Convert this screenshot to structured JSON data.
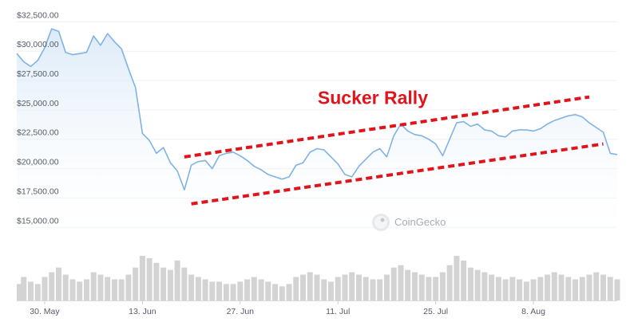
{
  "colors": {
    "line": "#7fb3e6",
    "area_top": "#d4e6f7",
    "volume": "#d3d3d3",
    "channel": "#e0141b",
    "annotation": "#e0141b",
    "grid": "#eef1f5"
  },
  "chart_data": {
    "type": "line",
    "title": "",
    "xlabel": "",
    "ylabel": "",
    "ylim": [
      14000,
      33000
    ],
    "y_ticks": [
      {
        "value": 32500,
        "label": "$32,500.00"
      },
      {
        "value": 30000,
        "label": "$30,000.00"
      },
      {
        "value": 27500,
        "label": "$27,500.00"
      },
      {
        "value": 25000,
        "label": "$25,000.00"
      },
      {
        "value": 22500,
        "label": "$22,500.00"
      },
      {
        "value": 20000,
        "label": "$20,000.00"
      },
      {
        "value": 17500,
        "label": "$17,500.00"
      },
      {
        "value": 15000,
        "label": "$15,000.00"
      }
    ],
    "x_ticks": [
      {
        "date": "2022-05-30",
        "label": "30. May"
      },
      {
        "date": "2022-06-13",
        "label": "13. Jun"
      },
      {
        "date": "2022-06-27",
        "label": "27. Jun"
      },
      {
        "date": "2022-07-11",
        "label": "11. Jul"
      },
      {
        "date": "2022-07-25",
        "label": "25. Jul"
      },
      {
        "date": "2022-08-08",
        "label": "8. Aug"
      }
    ],
    "xlim": [
      "2022-05-26",
      "2022-08-20"
    ],
    "series": [
      {
        "values": [
          [
            "2022-05-26",
            29800
          ],
          [
            "2022-05-27",
            29100
          ],
          [
            "2022-05-28",
            28700
          ],
          [
            "2022-05-29",
            29200
          ],
          [
            "2022-05-30",
            30300
          ],
          [
            "2022-05-31",
            31900
          ],
          [
            "2022-06-01",
            31700
          ],
          [
            "2022-06-02",
            29900
          ],
          [
            "2022-06-03",
            29700
          ],
          [
            "2022-06-04",
            29800
          ],
          [
            "2022-06-05",
            29900
          ],
          [
            "2022-06-06",
            31300
          ],
          [
            "2022-06-07",
            30500
          ],
          [
            "2022-06-08",
            31500
          ],
          [
            "2022-06-09",
            30800
          ],
          [
            "2022-06-10",
            30200
          ],
          [
            "2022-06-11",
            28500
          ],
          [
            "2022-06-12",
            26900
          ],
          [
            "2022-06-13",
            23000
          ],
          [
            "2022-06-14",
            22400
          ],
          [
            "2022-06-15",
            21300
          ],
          [
            "2022-06-16",
            21800
          ],
          [
            "2022-06-17",
            20500
          ],
          [
            "2022-06-18",
            19800
          ],
          [
            "2022-06-19",
            18200
          ],
          [
            "2022-06-20",
            20300
          ],
          [
            "2022-06-21",
            20600
          ],
          [
            "2022-06-22",
            20700
          ],
          [
            "2022-06-23",
            20000
          ],
          [
            "2022-06-24",
            21100
          ],
          [
            "2022-06-25",
            21300
          ],
          [
            "2022-06-26",
            21400
          ],
          [
            "2022-06-27",
            21100
          ],
          [
            "2022-06-28",
            20700
          ],
          [
            "2022-06-29",
            20200
          ],
          [
            "2022-06-30",
            19900
          ],
          [
            "2022-07-01",
            19500
          ],
          [
            "2022-07-02",
            19300
          ],
          [
            "2022-07-03",
            19100
          ],
          [
            "2022-07-04",
            19300
          ],
          [
            "2022-07-05",
            20300
          ],
          [
            "2022-07-06",
            20500
          ],
          [
            "2022-07-07",
            21400
          ],
          [
            "2022-07-08",
            21700
          ],
          [
            "2022-07-09",
            21600
          ],
          [
            "2022-07-10",
            21000
          ],
          [
            "2022-07-11",
            20400
          ],
          [
            "2022-07-12",
            19500
          ],
          [
            "2022-07-13",
            19300
          ],
          [
            "2022-07-14",
            20200
          ],
          [
            "2022-07-15",
            20800
          ],
          [
            "2022-07-16",
            21400
          ],
          [
            "2022-07-17",
            21700
          ],
          [
            "2022-07-18",
            21000
          ],
          [
            "2022-07-19",
            22800
          ],
          [
            "2022-07-20",
            23800
          ],
          [
            "2022-07-21",
            23200
          ],
          [
            "2022-07-22",
            22900
          ],
          [
            "2022-07-23",
            22800
          ],
          [
            "2022-07-24",
            22500
          ],
          [
            "2022-07-25",
            22100
          ],
          [
            "2022-07-26",
            21100
          ],
          [
            "2022-07-27",
            22500
          ],
          [
            "2022-07-28",
            23900
          ],
          [
            "2022-07-29",
            24000
          ],
          [
            "2022-07-30",
            23600
          ],
          [
            "2022-07-31",
            23800
          ],
          [
            "2022-08-01",
            23300
          ],
          [
            "2022-08-02",
            23200
          ],
          [
            "2022-08-03",
            22800
          ],
          [
            "2022-08-04",
            22700
          ],
          [
            "2022-08-05",
            23200
          ],
          [
            "2022-08-06",
            23300
          ],
          [
            "2022-08-07",
            23300
          ],
          [
            "2022-08-08",
            23200
          ],
          [
            "2022-08-09",
            23400
          ],
          [
            "2022-08-10",
            23800
          ],
          [
            "2022-08-11",
            24100
          ],
          [
            "2022-08-12",
            24300
          ],
          [
            "2022-08-13",
            24500
          ],
          [
            "2022-08-14",
            24600
          ],
          [
            "2022-08-15",
            24400
          ],
          [
            "2022-08-16",
            23900
          ],
          [
            "2022-08-17",
            23500
          ],
          [
            "2022-08-18",
            23100
          ],
          [
            "2022-08-19",
            21300
          ],
          [
            "2022-08-20",
            21200
          ]
        ]
      }
    ],
    "volume": [
      0.35,
      0.5,
      0.4,
      0.35,
      0.5,
      0.6,
      0.7,
      0.55,
      0.45,
      0.4,
      0.45,
      0.6,
      0.55,
      0.5,
      0.45,
      0.45,
      0.55,
      0.7,
      0.95,
      0.9,
      0.8,
      0.7,
      0.65,
      0.85,
      0.7,
      0.55,
      0.5,
      0.45,
      0.4,
      0.4,
      0.35,
      0.35,
      0.4,
      0.45,
      0.5,
      0.45,
      0.4,
      0.35,
      0.3,
      0.35,
      0.5,
      0.55,
      0.6,
      0.55,
      0.45,
      0.4,
      0.5,
      0.55,
      0.6,
      0.55,
      0.5,
      0.45,
      0.45,
      0.55,
      0.7,
      0.75,
      0.65,
      0.6,
      0.55,
      0.5,
      0.5,
      0.6,
      0.75,
      0.95,
      0.85,
      0.7,
      0.65,
      0.6,
      0.55,
      0.5,
      0.45,
      0.5,
      0.45,
      0.4,
      0.45,
      0.5,
      0.55,
      0.6,
      0.55,
      0.5,
      0.45,
      0.5,
      0.55,
      0.6,
      0.55,
      0.5,
      0.45
    ],
    "channel_lines": [
      {
        "name": "upper",
        "from": [
          "2022-06-19",
          21000
        ],
        "to": [
          "2022-08-16",
          26100
        ]
      },
      {
        "name": "lower",
        "from": [
          "2022-06-20",
          17000
        ],
        "to": [
          "2022-08-18",
          22100
        ]
      }
    ],
    "annotation": {
      "text": "Sucker Rally",
      "date": "2022-07-16",
      "value": 25500
    }
  },
  "watermark": {
    "text": "CoinGecko"
  }
}
